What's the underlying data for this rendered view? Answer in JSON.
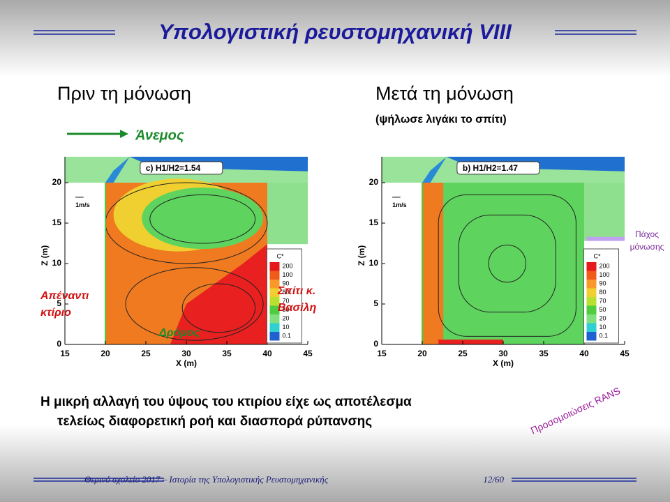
{
  "header": {
    "title": "Υπολογιστική ρευστομηχανική VIII"
  },
  "panels": [
    {
      "heading": "Πριν τη μόνωση",
      "plot_label": "c) H1/H2=1.54",
      "wind_label": "Άνεμος",
      "left_building": [
        "Απέναντι",
        "κτίριο"
      ],
      "right_building": [
        "Σπίτι κ.",
        "Βασίλη"
      ],
      "street": "Δρόμος"
    },
    {
      "heading": "Μετά τη μόνωση",
      "subheading": "(ψήλωσε λιγάκι το σπίτι)",
      "plot_label": "b) H1/H2=1.47",
      "insulation": [
        "Πάχος",
        "μόνωσης"
      ]
    }
  ],
  "axes": {
    "x_label": "X (m)",
    "y_label": "Z (m)",
    "xticks": [
      15,
      20,
      25,
      30,
      35,
      40,
      45
    ],
    "yticks": [
      0,
      5,
      10,
      15,
      20
    ],
    "scale_label": "1m/s"
  },
  "colorbar": {
    "title": "C*",
    "labels": [
      200,
      100,
      90,
      80,
      70,
      50,
      20,
      10,
      0.1
    ]
  },
  "body": {
    "lines": [
      "Η μικρή αλλαγή του ύψους του κτιρίου είχε ως αποτέλεσμα",
      "τελείως διαφορετική ροή και διασπορά ρύπανσης"
    ]
  },
  "side_note": "Προσομοιώσεις RANS",
  "footer": {
    "text": "Θερινό σχολείο 2017 – Ιστορία της Υπολογιστικής Ρευστομηχανικής",
    "page": "12/60"
  }
}
